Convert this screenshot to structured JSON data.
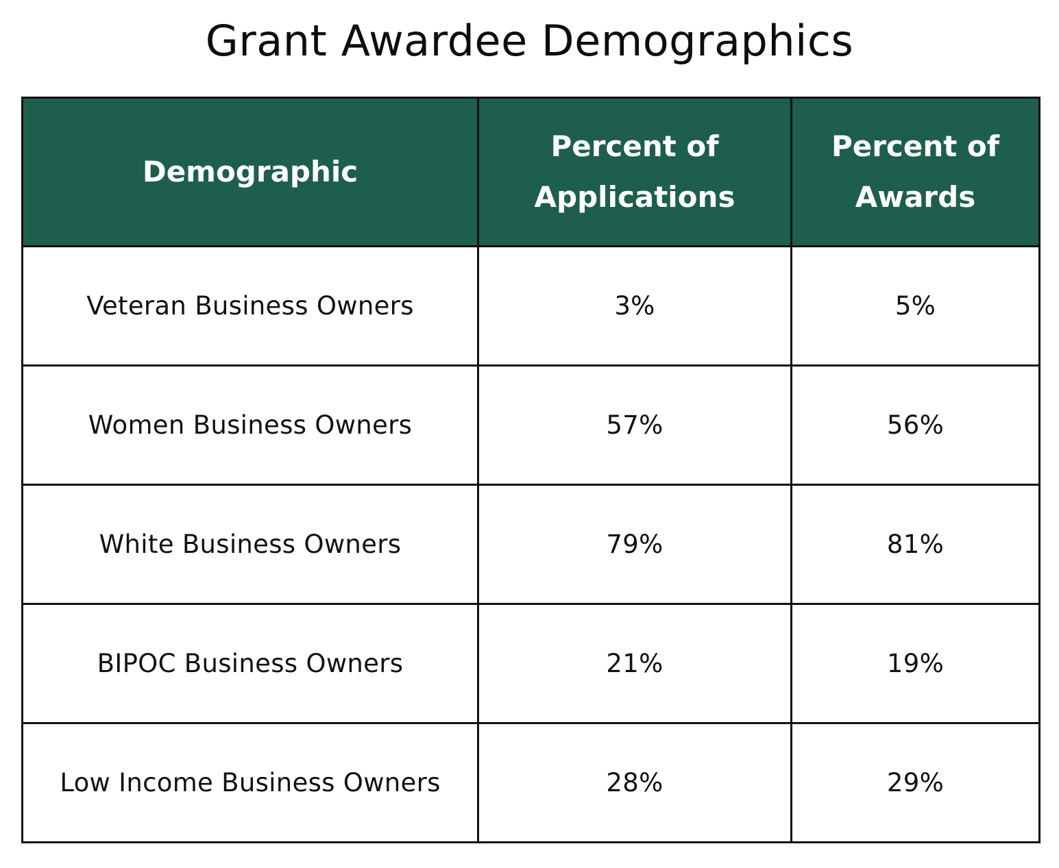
{
  "title": "Grant Awardee Demographics",
  "colors": {
    "header_background": "#1e5e4c",
    "header_text": "#ffffff",
    "border": "#111111"
  },
  "chart_data": {
    "type": "table",
    "title": "Grant Awardee Demographics",
    "columns": [
      {
        "lines": [
          "Demographic"
        ]
      },
      {
        "lines": [
          "Percent of",
          "Applications"
        ]
      },
      {
        "lines": [
          "Percent of",
          "Awards"
        ]
      }
    ],
    "rows": [
      [
        "Veteran Business Owners",
        "3%",
        "5%"
      ],
      [
        "Women Business Owners",
        "57%",
        "56%"
      ],
      [
        "White Business Owners",
        "79%",
        "81%"
      ],
      [
        "BIPOC Business Owners",
        "21%",
        "19%"
      ],
      [
        "Low Income Business Owners",
        "28%",
        "29%"
      ]
    ]
  }
}
